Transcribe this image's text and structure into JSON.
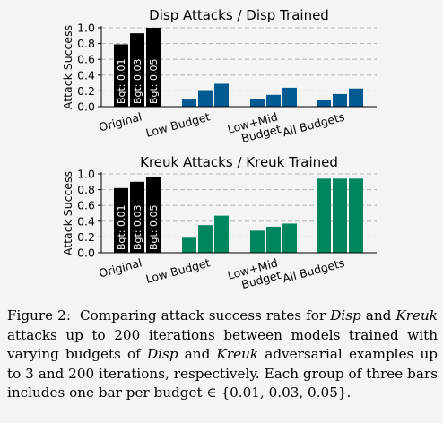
{
  "chart_data": [
    {
      "type": "bar",
      "title": "Disp Attacks / Disp Trained",
      "ylabel": "Attack Success",
      "ylim": [
        0,
        1.0
      ],
      "yticks": [
        "0.0",
        "0.2",
        "0.4",
        "0.6",
        "0.8",
        "1.0"
      ],
      "grid": "horizontal dashed",
      "categories": [
        "Original",
        "Low Budget",
        "Low+Mid\nBudget",
        "All Budgets"
      ],
      "bar_labels": [
        "Bgt: 0.01",
        "Bgt: 0.03",
        "Bgt: 0.05"
      ],
      "colors": {
        "original": "#000000",
        "trained": "#005a92"
      },
      "values": [
        [
          0.79,
          0.93,
          1.0
        ],
        [
          0.09,
          0.21,
          0.29
        ],
        [
          0.1,
          0.15,
          0.24
        ],
        [
          0.08,
          0.16,
          0.23
        ]
      ]
    },
    {
      "type": "bar",
      "title": "Kreuk Attacks / Kreuk Trained",
      "ylabel": "Attack Success",
      "ylim": [
        0,
        1.0
      ],
      "yticks": [
        "0.0",
        "0.2",
        "0.4",
        "0.6",
        "0.8",
        "1.0"
      ],
      "grid": "horizontal dashed",
      "categories": [
        "Original",
        "Low Budget",
        "Low+Mid\nBudget",
        "All Budgets"
      ],
      "bar_labels": [
        "Bgt: 0.01",
        "Bgt: 0.03",
        "Bgt: 0.05"
      ],
      "colors": {
        "original": "#000000",
        "trained": "#00855e"
      },
      "values": [
        [
          0.82,
          0.9,
          0.96
        ],
        [
          0.19,
          0.35,
          0.47
        ],
        [
          0.28,
          0.33,
          0.37
        ],
        [
          0.94,
          0.94,
          0.94
        ]
      ]
    }
  ],
  "caption": {
    "label": "Figure 2:",
    "parts": [
      {
        "t": "Comparing attack success rates for "
      },
      {
        "t": "Disp",
        "i": true
      },
      {
        "t": " and "
      },
      {
        "t": "Kreuk",
        "i": true
      },
      {
        "t": " attacks up to 200 iterations between models trained with varying budgets of "
      },
      {
        "t": "Disp",
        "i": true
      },
      {
        "t": " and "
      },
      {
        "t": "Kreuk",
        "i": true
      },
      {
        "t": " adversarial examples up to 3 and 200 iterations, respectively. Each group of three bars includes one bar per budget ∈ {0.01, 0.03, 0.05}."
      }
    ]
  }
}
